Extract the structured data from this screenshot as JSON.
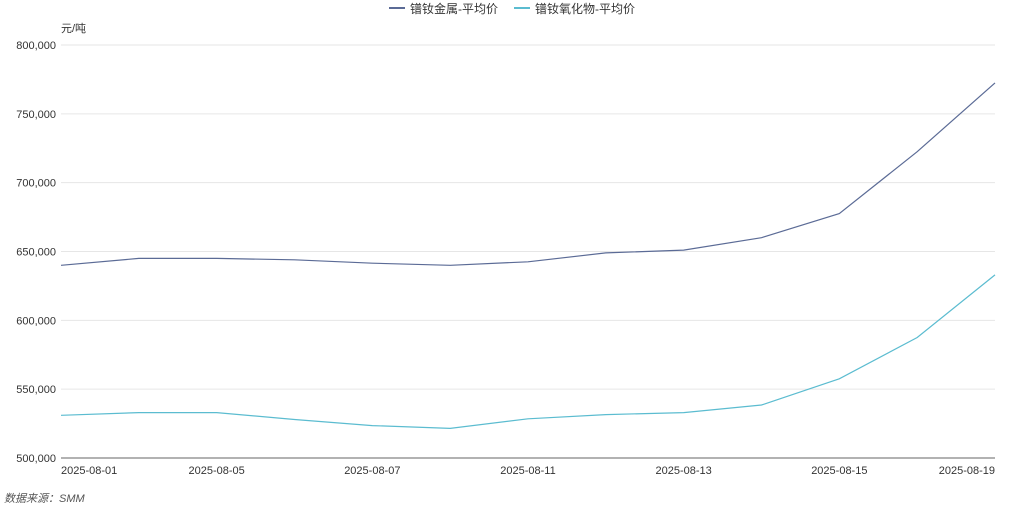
{
  "chart_data": {
    "type": "line",
    "ylabel": "元/吨",
    "ylim": [
      500000,
      800000
    ],
    "yticks": [
      "800,000",
      "750,000",
      "700,000",
      "650,000",
      "600,000",
      "550,000",
      "500,000"
    ],
    "ytick_values": [
      800000,
      750000,
      700000,
      650000,
      600000,
      550000,
      500000
    ],
    "x": [
      "2025-08-01",
      "2025-08-04",
      "2025-08-05",
      "2025-08-06",
      "2025-08-07",
      "2025-08-08",
      "2025-08-11",
      "2025-08-12",
      "2025-08-13",
      "2025-08-14",
      "2025-08-15",
      "2025-08-18",
      "2025-08-19"
    ],
    "xticks_shown": [
      "2025-08-01",
      "2025-08-05",
      "2025-08-07",
      "2025-08-11",
      "2025-08-13",
      "2025-08-15",
      "2025-08-19"
    ],
    "series": [
      {
        "name": "镨钕金属-平均价",
        "color": "#5b6b96",
        "values": [
          640000,
          645000,
          645000,
          644000,
          641500,
          640000,
          642500,
          649000,
          651000,
          660000,
          677500,
          722500,
          772500
        ]
      },
      {
        "name": "镨钕氧化物-平均价",
        "color": "#5bbcd0",
        "values": [
          531000,
          533000,
          533000,
          528000,
          523500,
          521500,
          528500,
          531500,
          533000,
          538500,
          557500,
          587500,
          633000
        ]
      }
    ],
    "grid": true,
    "legend": "top-center"
  },
  "source": "数据来源：SMM"
}
